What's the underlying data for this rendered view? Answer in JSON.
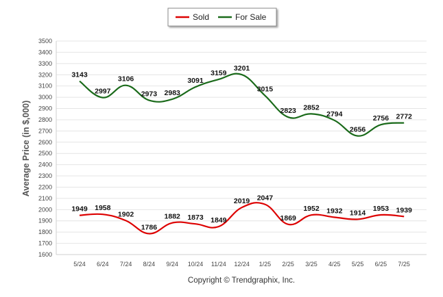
{
  "chart_data": {
    "type": "line",
    "categories": [
      "5/24",
      "6/24",
      "7/24",
      "8/24",
      "9/24",
      "10/24",
      "11/24",
      "12/24",
      "1/25",
      "2/25",
      "3/25",
      "4/25",
      "5/25",
      "6/25",
      "7/25"
    ],
    "series": [
      {
        "name": "Sold",
        "color": "#dd0000",
        "values": [
          1949,
          1958,
          1902,
          1786,
          1882,
          1873,
          1849,
          2019,
          2047,
          1869,
          1952,
          1932,
          1914,
          1953,
          1939
        ]
      },
      {
        "name": "For Sale",
        "color": "#1a6a1a",
        "values": [
          3143,
          2997,
          3106,
          2973,
          2983,
          3091,
          3159,
          3201,
          3015,
          2823,
          2852,
          2794,
          2656,
          2756,
          2772
        ]
      }
    ],
    "ylabel": "Average Price (in $,000)",
    "xlabel": "",
    "ylim": [
      1600,
      3500
    ],
    "ytick_step": 100,
    "grid": true,
    "legend": "top-center",
    "source": "Copyright © Trendgraphix, Inc."
  }
}
